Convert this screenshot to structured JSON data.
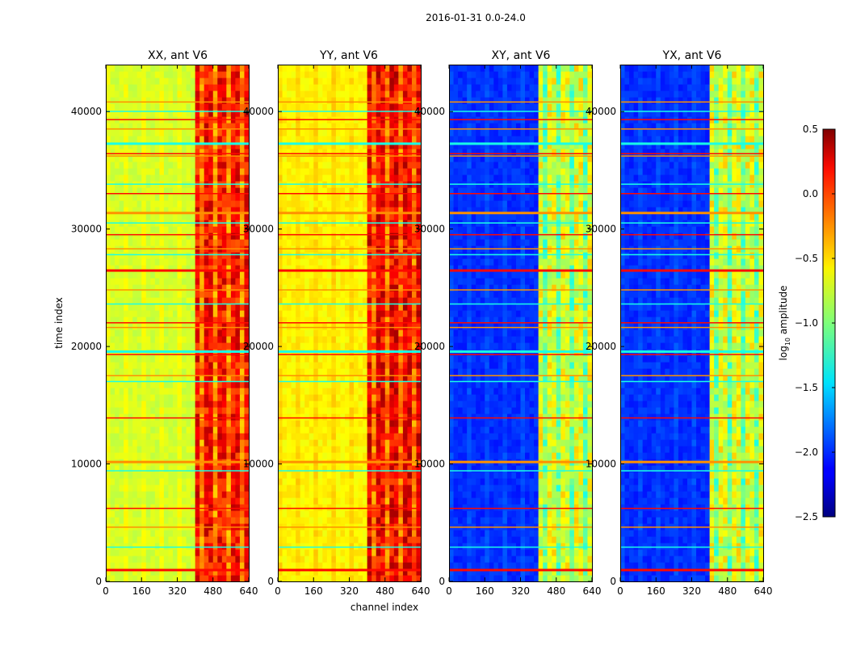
{
  "chart_data": {
    "type": "heatmap",
    "suptitle": "2016-01-31 0.0-24.0",
    "xlabel": "channel index",
    "ylabel": "time index",
    "colormap": "jet",
    "x_range": [
      0,
      640
    ],
    "y_range": [
      0,
      44000
    ],
    "x_ticks": [
      "0",
      "160",
      "320",
      "480",
      "640"
    ],
    "y_ticks": [
      "0",
      "10000",
      "20000",
      "30000",
      "40000"
    ],
    "panels": [
      {
        "title": "XX, ant V6",
        "style": "parallel",
        "base_level": -0.75,
        "high_band_level": 0.1
      },
      {
        "title": "YY, ant V6",
        "style": "parallel",
        "base_level": -0.6,
        "high_band_level": 0.15
      },
      {
        "title": "XY, ant V6",
        "style": "cross",
        "base_level": -2.0,
        "high_band_level": -0.7
      },
      {
        "title": "YX, ant V6",
        "style": "cross",
        "base_level": -2.0,
        "high_band_level": -0.7
      }
    ],
    "high_band_channels": [
      410,
      640
    ],
    "rfi_rows_time_index": [
      1000,
      2900,
      4600,
      6200,
      9400,
      10200,
      13900,
      17000,
      17500,
      19300,
      19600,
      21600,
      22000,
      23600,
      24800,
      26500,
      27800,
      28300,
      29500,
      30500,
      31400,
      33000,
      33800,
      36200,
      36400,
      37300,
      38500,
      39300,
      40000,
      40800
    ],
    "colorbar": {
      "label_main": "log",
      "label_sub": "10",
      "label_rest": " amplitude",
      "range": [
        -2.5,
        0.5
      ],
      "ticks": [
        "0.5",
        "0.0",
        "−0.5",
        "−1.0",
        "−1.5",
        "−2.0",
        "−2.5"
      ]
    }
  },
  "colors": {
    "background": "#ffffff",
    "axes": "#000000"
  }
}
